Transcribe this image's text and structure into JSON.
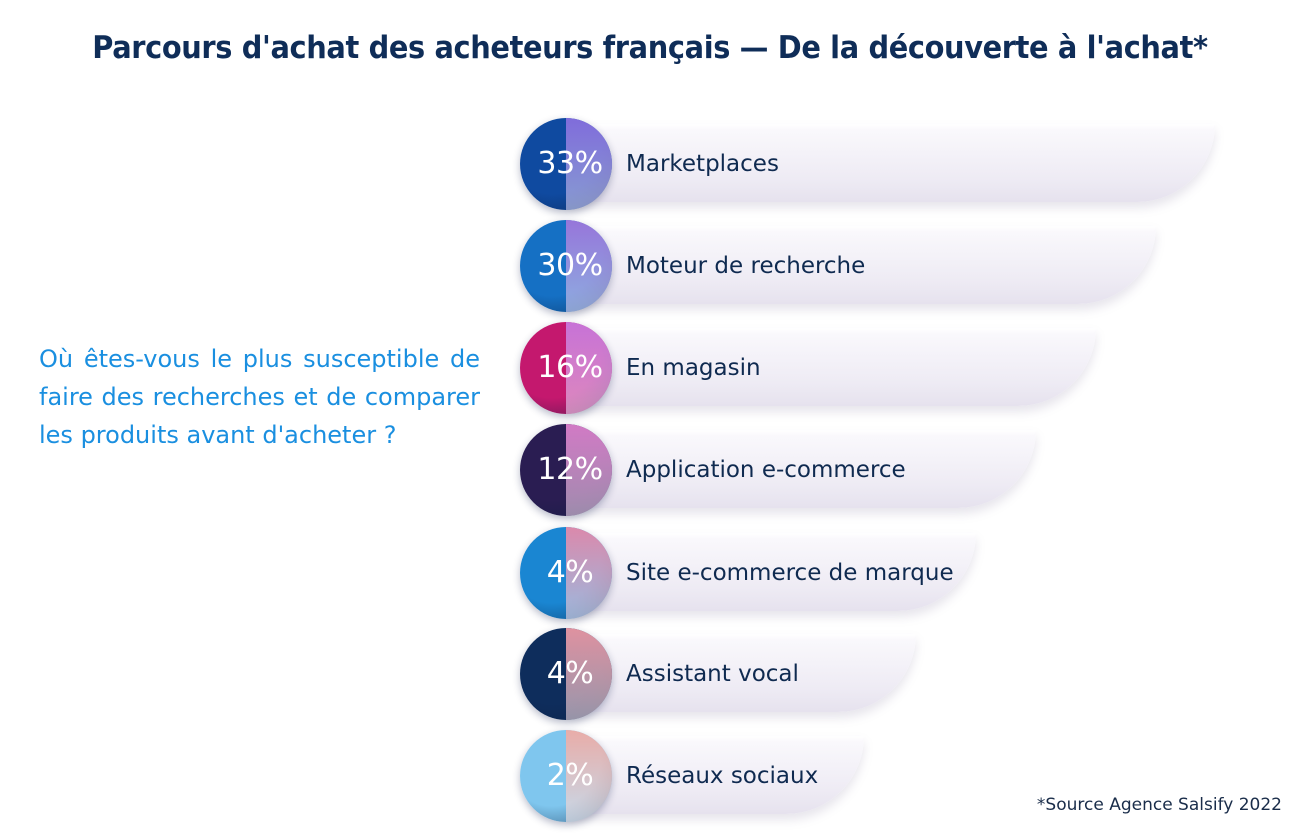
{
  "title": "Parcours d'achat des acheteurs français — De la découverte à l'achat*",
  "question": "Où êtes-vous le plus susceptible de faire des recherches et de comparer les produits avant d'acheter ?",
  "source": "*Source Agence Salsify 2022",
  "chart_data": {
    "type": "bar",
    "orientation": "horizontal",
    "categories": [
      "Marketplaces",
      "Moteur de recherche",
      "En magasin",
      "Application e-commerce",
      "Site e-commerce de marque",
      "Assistant vocal",
      "Réseaux sociaux"
    ],
    "values": [
      33,
      30,
      16,
      12,
      4,
      4,
      2
    ],
    "value_labels": [
      "33%",
      "30%",
      "16%",
      "12%",
      "4%",
      "4%",
      "2%"
    ],
    "unit": "%",
    "circle_colors": [
      "#0f4aa0",
      "#1570c4",
      "#c4186e",
      "#2a1d52",
      "#1a86d2",
      "#0e2d5c",
      "#7fc6ee"
    ],
    "accent_colors": [
      "#8a6fe0",
      "#a276dc",
      "#c77ae0",
      "#e082cf",
      "#ec89a8",
      "#f19aa6",
      "#f2aaa2"
    ]
  }
}
